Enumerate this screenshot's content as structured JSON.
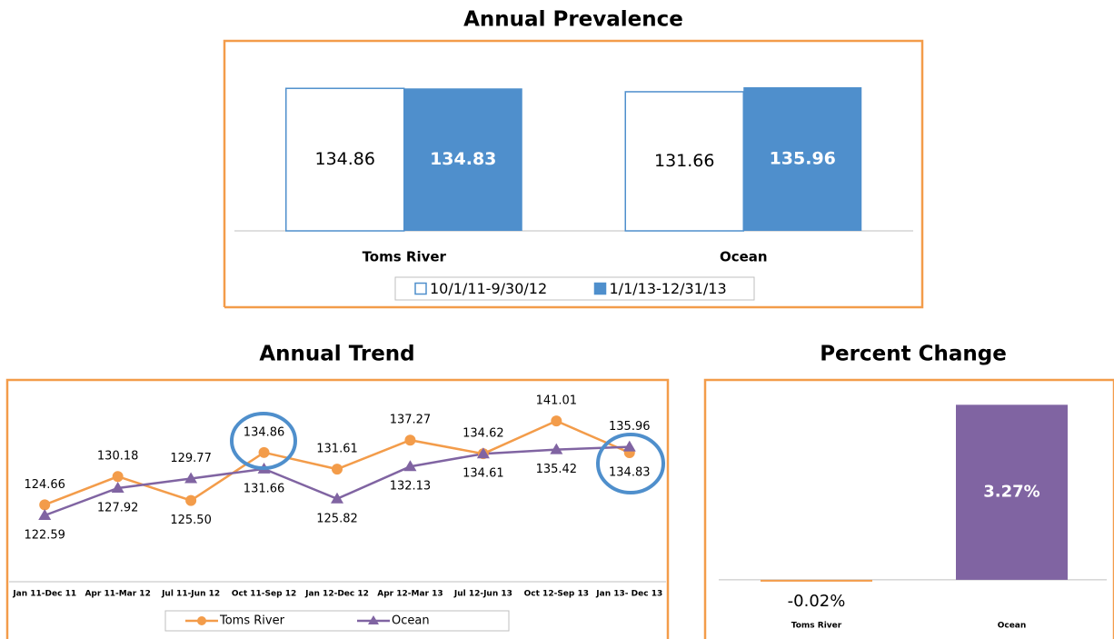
{
  "chart_data": [
    {
      "type": "bar",
      "title": "Annual Prevalence",
      "categories": [
        "Toms River",
        "Ocean"
      ],
      "series": [
        {
          "name": "10/1/11-9/30/12",
          "color": "#ffffff",
          "edgecolor": "#4f8fcc",
          "values": [
            134.86,
            131.66
          ]
        },
        {
          "name": "1/1/13-12/31/13",
          "color": "#4f8fcc",
          "values": [
            134.83,
            135.96
          ]
        }
      ],
      "ylim": [
        0,
        160
      ],
      "legend": "bottom"
    },
    {
      "type": "line",
      "title": "Annual Trend",
      "categories": [
        "Jan 11-Dec 11",
        "Apr 11-Mar 12",
        "Jul 11-Jun 12",
        "Oct 11-Sep 12",
        "Jan 12-Dec 12",
        "Apr 12-Mar 13",
        "Jul 12-Jun 13",
        "Oct 12-Sep 13",
        "Jan 13- Dec 13"
      ],
      "series": [
        {
          "name": "Toms River",
          "color": "#f39c4a",
          "marker": "circle",
          "values": [
            124.66,
            130.18,
            125.5,
            134.86,
            131.61,
            137.27,
            134.62,
            141.01,
            134.83
          ],
          "value_labels": [
            "124.66",
            "130.18",
            "125.50",
            "134.86",
            "131.61",
            "137.27",
            "134.62",
            "141.01",
            "134.83"
          ]
        },
        {
          "name": "Ocean",
          "color": "#8064a2",
          "marker": "triangle",
          "values": [
            122.59,
            127.92,
            129.77,
            131.66,
            125.82,
            132.13,
            134.61,
            135.42,
            135.96
          ],
          "value_labels": [
            "122.59",
            "127.92",
            "129.77",
            "131.66",
            "125.82",
            "132.13",
            "134.61",
            "135.42",
            "135.96"
          ]
        }
      ],
      "ylim": [
        110,
        146
      ],
      "legend": "bottom"
    },
    {
      "type": "bar",
      "title": "Percent Change",
      "categories": [
        "Toms River",
        "Ocean"
      ],
      "values": [
        -0.02,
        3.27
      ],
      "value_labels": [
        "-0.02%",
        "3.27%"
      ],
      "colors": [
        "#f39c4a",
        "#8064a2"
      ],
      "ylim": [
        -0.8,
        3.7
      ]
    }
  ]
}
